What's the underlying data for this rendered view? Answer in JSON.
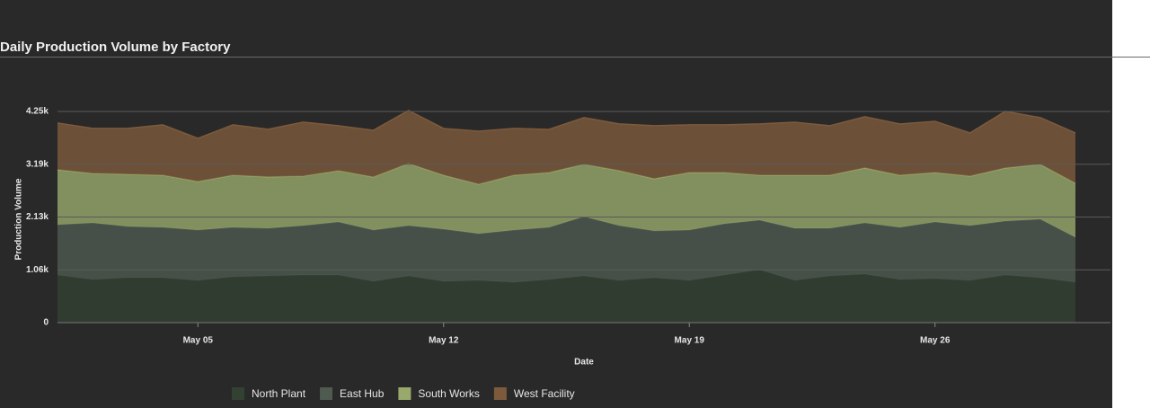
{
  "chart_data": {
    "type": "stacked_area",
    "title": "Daily Production Volume by Factory",
    "x_label": "Date",
    "y_label": "Production Volume",
    "x": [
      "May 01",
      "May 02",
      "May 03",
      "May 04",
      "May 05",
      "May 06",
      "May 07",
      "May 08",
      "May 09",
      "May 10",
      "May 11",
      "May 12",
      "May 13",
      "May 14",
      "May 15",
      "May 16",
      "May 17",
      "May 18",
      "May 19",
      "May 20",
      "May 21",
      "May 22",
      "May 23",
      "May 24",
      "May 25",
      "May 26",
      "May 27",
      "May 28",
      "May 29",
      "May 30"
    ],
    "xticks": [
      "May 05",
      "May 12",
      "May 19",
      "May 26"
    ],
    "ylim": [
      0,
      4250
    ],
    "yticks": [
      0,
      {
        "value": 1062.5,
        "label": "1.06k"
      },
      {
        "value": 2125,
        "label": "2.13k"
      },
      {
        "value": 3187.5,
        "label": "3.19k"
      },
      {
        "value": 4250,
        "label": "4.25k"
      }
    ],
    "grid": true,
    "legend": "bottom",
    "series": [
      {
        "name": "North Plant",
        "color": "#334133",
        "values": [
          959,
          868,
          905,
          905,
          850,
          923,
          941,
          959,
          959,
          832,
          941,
          832,
          850,
          814,
          868,
          941,
          850,
          905,
          850,
          959,
          1067,
          850,
          941,
          977,
          868,
          886,
          850,
          959,
          905,
          814
        ]
      },
      {
        "name": "East Hub",
        "color": "#4f5a50",
        "values": [
          1013,
          1140,
          1031,
          1013,
          1013,
          995,
          959,
          995,
          1067,
          1031,
          1013,
          1049,
          941,
          1049,
          1049,
          1194,
          1104,
          941,
          1013,
          1031,
          995,
          1049,
          959,
          1031,
          1049,
          1140,
          1104,
          1085,
          1176,
          905
        ]
      },
      {
        "name": "South Works",
        "color": "#98a96b",
        "values": [
          1104,
          995,
          1049,
          1049,
          977,
          1049,
          1031,
          995,
          1031,
          1067,
          1248,
          1085,
          995,
          1104,
          1104,
          1049,
          1104,
          1049,
          1158,
          1031,
          905,
          1067,
          1067,
          1104,
          1049,
          995,
          995,
          1067,
          1104,
          1085
        ]
      },
      {
        "name": "West Facility",
        "color": "#7d5a3c",
        "values": [
          941,
          905,
          923,
          1013,
          868,
          1013,
          959,
          1085,
          905,
          941,
          1067,
          941,
          1067,
          941,
          868,
          941,
          941,
          1067,
          959,
          959,
          1031,
          1067,
          995,
          1031,
          1031,
          1031,
          868,
          1140,
          941,
          1013
        ]
      }
    ]
  }
}
